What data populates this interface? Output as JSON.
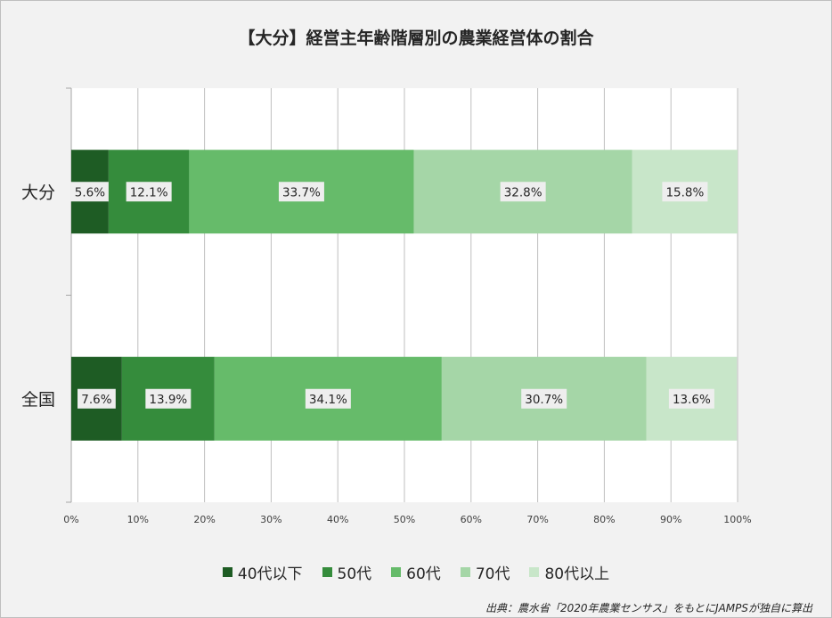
{
  "chart_data": {
    "type": "bar",
    "orientation": "horizontal",
    "stacked": true,
    "title": "【大分】経営主年齢階層別の農業経営体の割合",
    "categories": [
      "大分",
      "全国"
    ],
    "series": [
      {
        "name": "40代以下",
        "color": "#1e5c24",
        "values": [
          5.6,
          7.6
        ],
        "labels": [
          "5.6%",
          "7.6%"
        ]
      },
      {
        "name": "50代",
        "color": "#358c3c",
        "values": [
          12.1,
          13.9
        ],
        "labels": [
          "12.1%",
          "13.9%"
        ]
      },
      {
        "name": "60代",
        "color": "#66bb6a",
        "values": [
          33.7,
          34.1
        ],
        "labels": [
          "33.7%",
          "34.1%"
        ]
      },
      {
        "name": "70代",
        "color": "#a5d6a7",
        "values": [
          32.8,
          30.7
        ],
        "labels": [
          "32.8%",
          "30.7%"
        ]
      },
      {
        "name": "80代以上",
        "color": "#c8e6c9",
        "values": [
          15.8,
          13.6
        ],
        "labels": [
          "15.8%",
          "13.6%"
        ]
      }
    ],
    "xlim": [
      0,
      100
    ],
    "x_ticks": [
      "0%",
      "10%",
      "20%",
      "30%",
      "40%",
      "50%",
      "60%",
      "70%",
      "80%",
      "90%",
      "100%"
    ],
    "grid": true,
    "legend_position": "bottom",
    "source": "出典：農水省「2020年農業センサス」をもとにJAMPSが独自に算出"
  }
}
